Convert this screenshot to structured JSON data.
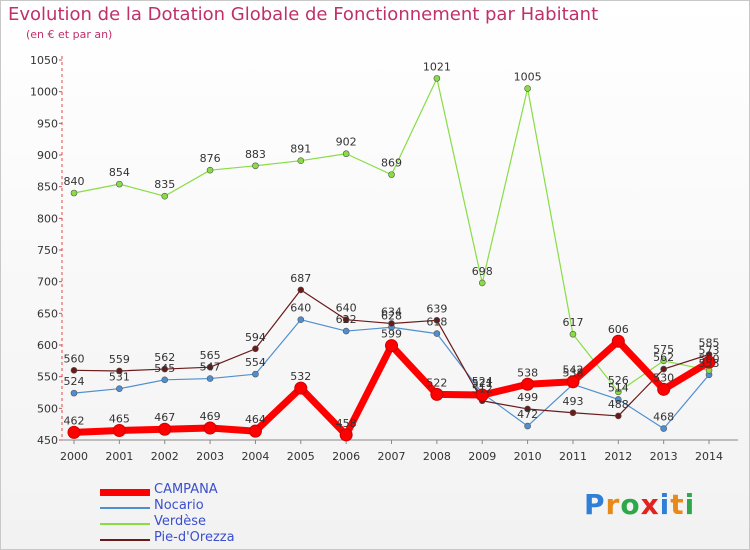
{
  "title": "Evolution de la Dotation Globale de Fonctionnement par Habitant",
  "subtitle": "(en € et par an)",
  "logo": "Proxiti",
  "chart_data": {
    "type": "line",
    "title": "Evolution de la Dotation Globale de Fonctionnement par Habitant",
    "subtitle": "(en € et par an)",
    "x": [
      "2000",
      "2001",
      "2002",
      "2003",
      "2004",
      "2005",
      "2006",
      "2007",
      "2008",
      "2009",
      "2010",
      "2011",
      "2012",
      "2013",
      "2014"
    ],
    "ylim": [
      450,
      1050
    ],
    "yticks": [
      450,
      500,
      550,
      600,
      650,
      700,
      750,
      800,
      850,
      900,
      950,
      1000,
      1050
    ],
    "grid": false,
    "legend_position": "bottom-left",
    "series": [
      {
        "name": "CAMPANA",
        "color": "#ff0000",
        "values": [
          462,
          465,
          467,
          469,
          464,
          532,
          458,
          599,
          522,
          521,
          538,
          542,
          606,
          530,
          573
        ]
      },
      {
        "name": "Nocario",
        "color": "#4f8fcf",
        "values": [
          524,
          531,
          545,
          547,
          554,
          640,
          622,
          628,
          618,
          524,
          472,
          538,
          514,
          468,
          553
        ]
      },
      {
        "name": "Verdèse",
        "color": "#88dd44",
        "values": [
          840,
          854,
          835,
          876,
          883,
          891,
          902,
          869,
          1021,
          698,
          1005,
          617,
          526,
          575,
          560
        ]
      },
      {
        "name": "Pie-d'Orezza",
        "color": "#6b1a1a",
        "values": [
          560,
          559,
          562,
          565,
          594,
          687,
          640,
          634,
          639,
          512,
          499,
          493,
          488,
          562,
          585
        ]
      }
    ]
  }
}
